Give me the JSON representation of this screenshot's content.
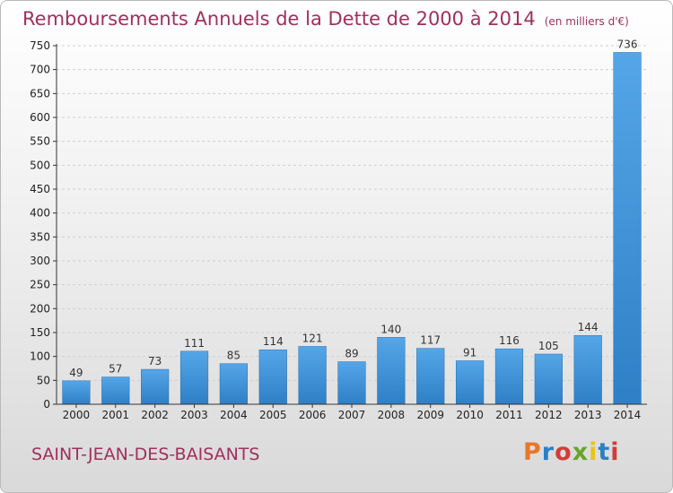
{
  "header": {
    "title": "Remboursements Annuels de la Dette de 2000 à 2014",
    "unit": "(en milliers d'€)"
  },
  "footer": {
    "commune": "SAINT-JEAN-DES-BAISANTS",
    "brand": "Proxiti"
  },
  "colors": {
    "title": "#a0305a",
    "bar": "#3b8fd6",
    "brand_letters": [
      "#e8772a",
      "#2b7fc4",
      "#d63a36",
      "#6aa52b",
      "#e5c41f",
      "#2b7fc4",
      "#d63a36"
    ]
  },
  "chart_data": {
    "type": "bar",
    "title": "Remboursements Annuels de la Dette de 2000 à 2014",
    "subtitle": "(en milliers d'€)",
    "xlabel": "",
    "ylabel": "",
    "categories": [
      "2000",
      "2001",
      "2002",
      "2003",
      "2004",
      "2005",
      "2006",
      "2007",
      "2008",
      "2009",
      "2010",
      "2011",
      "2012",
      "2013",
      "2014"
    ],
    "values": [
      49,
      57,
      73,
      111,
      85,
      114,
      121,
      89,
      140,
      117,
      91,
      116,
      105,
      144,
      736
    ],
    "ylim": [
      0,
      750
    ],
    "yticks": [
      0,
      50,
      100,
      150,
      200,
      250,
      300,
      350,
      400,
      450,
      500,
      550,
      600,
      650,
      700,
      750
    ],
    "grid": true,
    "data_labels": true
  }
}
